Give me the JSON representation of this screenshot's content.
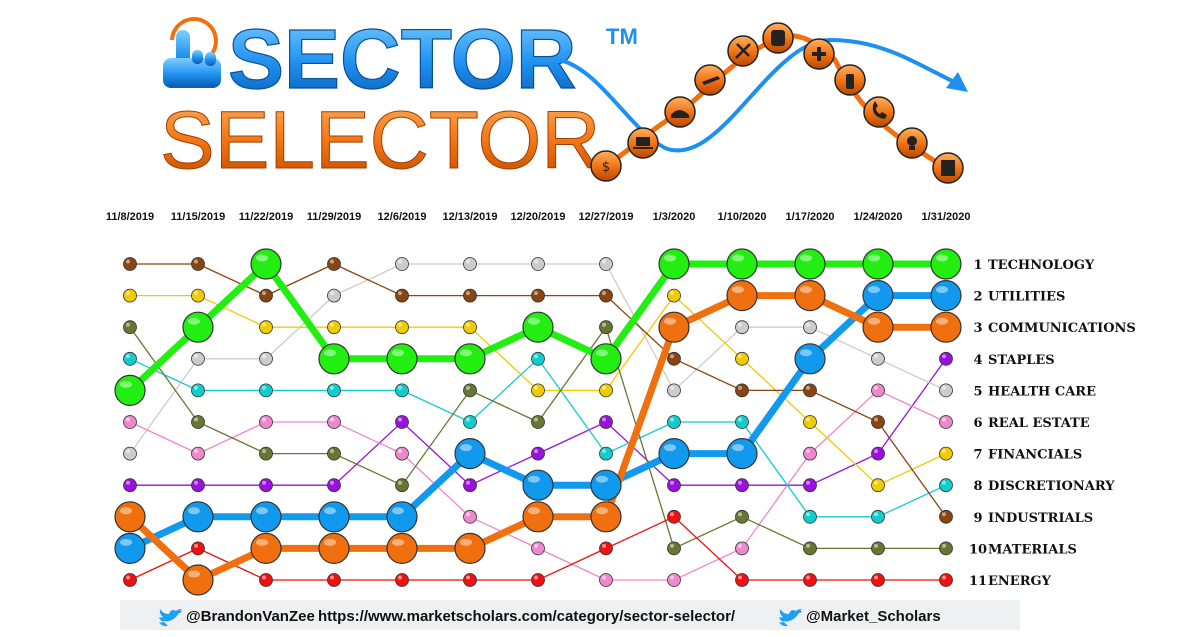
{
  "logo": {
    "word1": "SECTOR",
    "word2": "SELECTOR",
    "tm": "TM"
  },
  "footer": {
    "left_handle": "@BrandonVanZee",
    "url": "https://www.marketscholars.com/category/sector-selector/",
    "right_handle": "@Market_Scholars"
  },
  "chart_data": {
    "type": "bump",
    "x": [
      "11/8/2019",
      "11/15/2019",
      "11/22/2019",
      "11/29/2019",
      "12/6/2019",
      "12/13/2019",
      "12/20/2019",
      "12/27/2019",
      "1/3/2020",
      "1/10/2020",
      "1/17/2020",
      "1/24/2020",
      "1/31/2020"
    ],
    "y_reversed": true,
    "ylim": [
      1,
      11
    ],
    "final_ranking": [
      {
        "rank": "1",
        "sector": "TECHNOLOGY"
      },
      {
        "rank": "2",
        "sector": "UTILITIES"
      },
      {
        "rank": "3",
        "sector": "COMMUNICATIONS"
      },
      {
        "rank": "4",
        "sector": "STAPLES"
      },
      {
        "rank": "5",
        "sector": "HEALTH CARE"
      },
      {
        "rank": "6",
        "sector": "REAL ESTATE"
      },
      {
        "rank": "7",
        "sector": "FINANCIALS"
      },
      {
        "rank": "8",
        "sector": "DISCRETIONARY"
      },
      {
        "rank": "9",
        "sector": "INDUSTRIALS"
      },
      {
        "rank": "10",
        "sector": "MATERIALS"
      },
      {
        "rank": "11",
        "sector": "ENERGY"
      }
    ],
    "series": [
      {
        "key": "technology",
        "color": "#22ee11",
        "highlight": true,
        "ranks": [
          5,
          3,
          1,
          4,
          4,
          4,
          3,
          4,
          1,
          1,
          1,
          1,
          1
        ]
      },
      {
        "key": "utilities",
        "color": "#1199ee",
        "highlight": true,
        "ranks": [
          10,
          9,
          9,
          9,
          9,
          7,
          8,
          8,
          7,
          7,
          4,
          2,
          2
        ]
      },
      {
        "key": "communications",
        "color": "#f07010",
        "highlight": true,
        "ranks": [
          9,
          11,
          10,
          10,
          10,
          10,
          9,
          9,
          3,
          2,
          2,
          3,
          3
        ]
      },
      {
        "key": "staples",
        "color": "#9911dd",
        "highlight": false,
        "ranks": [
          8,
          8,
          8,
          8,
          6,
          8,
          7,
          6,
          8,
          8,
          8,
          7,
          4
        ]
      },
      {
        "key": "health_care",
        "color": "#cccccc",
        "highlight": false,
        "ranks": [
          7,
          4,
          4,
          2,
          1,
          1,
          1,
          1,
          5,
          3,
          3,
          4,
          5
        ]
      },
      {
        "key": "real_estate",
        "color": "#ee88cc",
        "highlight": false,
        "ranks": [
          6,
          7,
          6,
          6,
          7,
          9,
          10,
          11,
          11,
          10,
          7,
          5,
          6
        ]
      },
      {
        "key": "financials",
        "color": "#eecc00",
        "highlight": false,
        "ranks": [
          2,
          2,
          3,
          3,
          3,
          3,
          5,
          5,
          2,
          4,
          6,
          8,
          7
        ]
      },
      {
        "key": "discretionary",
        "color": "#11cccc",
        "highlight": false,
        "ranks": [
          4,
          5,
          5,
          5,
          5,
          6,
          4,
          7,
          6,
          6,
          9,
          9,
          8
        ]
      },
      {
        "key": "industrials",
        "color": "#884411",
        "highlight": false,
        "ranks": [
          1,
          1,
          2,
          1,
          2,
          2,
          2,
          2,
          4,
          5,
          5,
          6,
          9
        ]
      },
      {
        "key": "materials",
        "color": "#667733",
        "highlight": false,
        "ranks": [
          3,
          6,
          7,
          7,
          8,
          5,
          6,
          3,
          10,
          9,
          10,
          10,
          10
        ]
      },
      {
        "key": "energy",
        "color": "#ee1111",
        "highlight": false,
        "ranks": [
          11,
          10,
          11,
          11,
          11,
          11,
          11,
          10,
          9,
          11,
          11,
          11,
          11
        ]
      }
    ]
  }
}
